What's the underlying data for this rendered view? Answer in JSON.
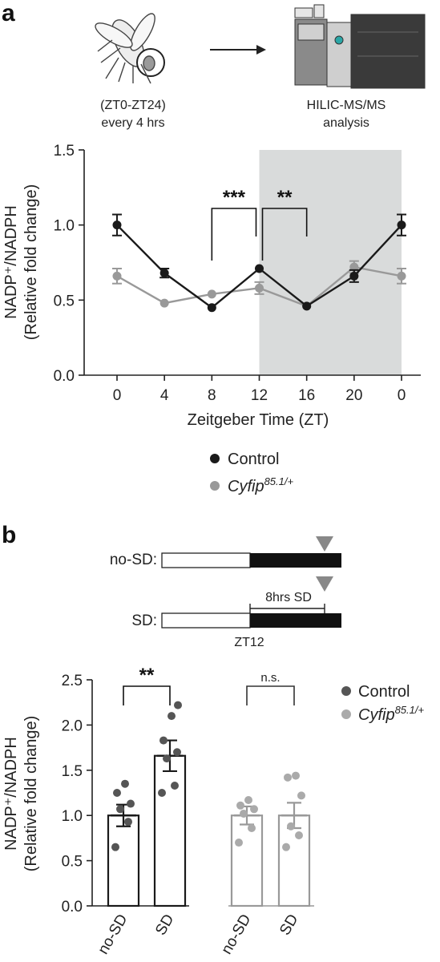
{
  "panel_a": {
    "letter": "a",
    "step1_caption": [
      "(ZT0-ZT24)",
      "every 4 hrs"
    ],
    "step2_caption": [
      "HILIC-MS/MS",
      "analysis"
    ],
    "icons": [
      "fly-icon",
      "arrow-right-icon",
      "mass-spectrometer-icon"
    ]
  },
  "panel_b": {
    "letter": "b",
    "protocol": {
      "row1_label": "no-SD:",
      "row2_label": "SD:",
      "sd_window_label": "8hrs SD",
      "zt_label": "ZT12"
    }
  },
  "chart_data": [
    {
      "type": "line",
      "xlabel": "Zeitgeber Time (ZT)",
      "ylabel_line1": "NADP⁺/NADPH",
      "ylabel_line2": "(Relative fold change)",
      "x": [
        "0",
        "4",
        "8",
        "12",
        "16",
        "20",
        "0"
      ],
      "ylim": [
        0,
        1.5
      ],
      "yticks": [
        "0.0",
        "0.5",
        "1.0",
        "1.5"
      ],
      "dark_phase": {
        "from": 3,
        "to": 6,
        "color": "#d9dbdb"
      },
      "series": [
        {
          "name": "Control",
          "color": "#1a1a1a",
          "values": [
            1.0,
            0.68,
            0.45,
            0.71,
            0.46,
            0.66,
            1.0
          ],
          "errors": [
            0.07,
            0.03,
            0.0,
            0.0,
            0.0,
            0.04,
            0.07
          ]
        },
        {
          "name": "Cyfip",
          "name_sup": "85.1/+",
          "color": "#999999",
          "values": [
            0.66,
            0.48,
            0.54,
            0.58,
            0.46,
            0.72,
            0.66
          ],
          "errors": [
            0.05,
            0.0,
            0.0,
            0.04,
            0.0,
            0.04,
            0.05
          ]
        }
      ],
      "significance": [
        {
          "from": 2,
          "to": 3,
          "label": "***"
        },
        {
          "from": 3,
          "to": 4,
          "label": "**"
        }
      ],
      "legend_position": "bottom"
    },
    {
      "type": "bar",
      "ylabel_line1": "NADP⁺/NADPH",
      "ylabel_line2": "(Relative fold change)",
      "categories": [
        "no-SD",
        "SD",
        "no-SD",
        "SD"
      ],
      "ylim": [
        0,
        2.5
      ],
      "yticks": [
        "0.0",
        "0.5",
        "1.0",
        "1.5",
        "2.0",
        "2.5"
      ],
      "groups": [
        {
          "name": "Control",
          "color": "#1a1a1a",
          "dot_color": "#555555",
          "bars": [
            {
              "value": 1.0,
              "error": 0.12,
              "points": [
                0.65,
                0.93,
                1.07,
                1.13,
                1.25,
                1.35
              ]
            },
            {
              "value": 1.66,
              "error": 0.17,
              "points": [
                1.25,
                1.33,
                1.63,
                1.7,
                1.83,
                2.1,
                2.22
              ]
            }
          ]
        },
        {
          "name": "Cyfip",
          "name_sup": "85.1/+",
          "color": "#999999",
          "dot_color": "#aaaaaa",
          "bars": [
            {
              "value": 1.0,
              "error": 0.1,
              "points": [
                0.7,
                0.86,
                1.02,
                1.07,
                1.11,
                1.17
              ]
            },
            {
              "value": 1.0,
              "error": 0.14,
              "points": [
                0.65,
                0.78,
                0.88,
                1.22,
                1.42,
                1.44
              ]
            }
          ]
        }
      ],
      "significance": [
        {
          "from": 0,
          "to": 1,
          "label": "**"
        },
        {
          "from": 2,
          "to": 3,
          "label": "n.s."
        }
      ],
      "legend_position": "right"
    }
  ]
}
